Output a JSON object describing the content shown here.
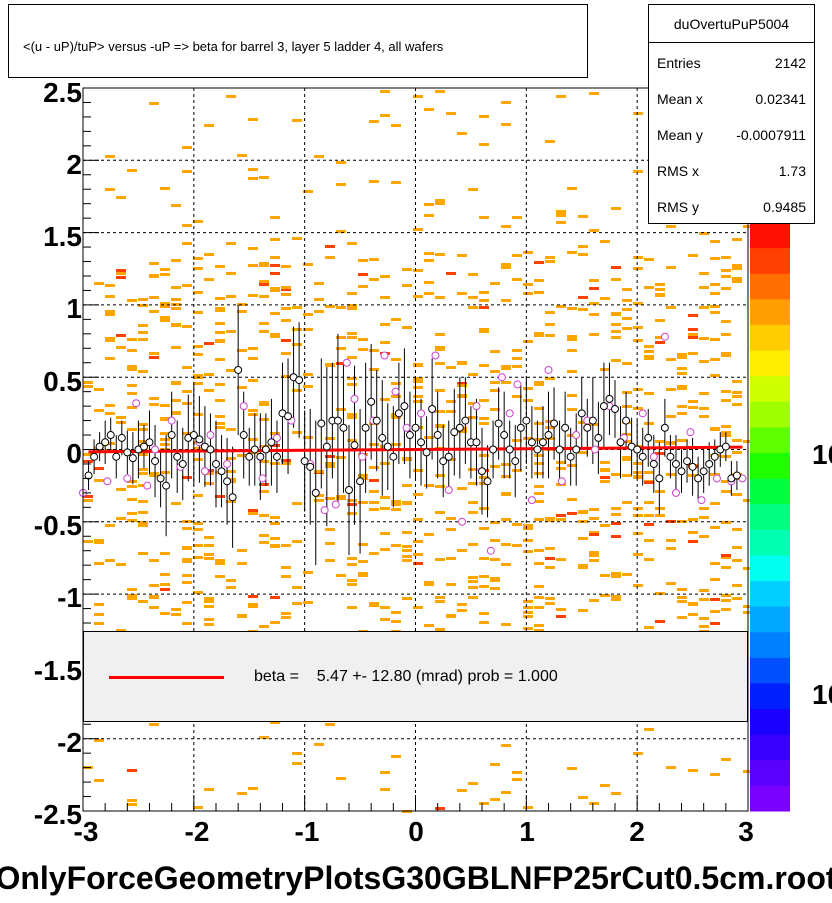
{
  "title": "<(u - uP)/tuP> versus  -uP => beta for barrel 3, layer 5 ladder 4, all wafers",
  "stats": {
    "name": "duOvertuPuP5004",
    "rows": [
      {
        "key": "Entries",
        "value": "2142"
      },
      {
        "key": "Mean x",
        "value": "0.02341"
      },
      {
        "key": "Mean y",
        "value": "-0.0007911"
      },
      {
        "key": "RMS x",
        "value": "1.73"
      },
      {
        "key": "RMS y",
        "value": "0.9485"
      }
    ]
  },
  "legend": {
    "line_color": "#ff0000",
    "text": "beta =    5.47 +- 12.80 (mrad) prob = 1.000"
  },
  "filename_label": "OnlyForceGeometryPlotsG30GBLNFP25rCut0.5cm.root",
  "colorbar_labels": [
    "10",
    "10"
  ],
  "chart_data": {
    "type": "scatter",
    "title": "<(u - uP)/tuP> versus  -uP => beta for barrel 3, layer 5 ladder 4, all wafers",
    "xlim": [
      -3,
      3
    ],
    "ylim": [
      -2.5,
      2.5
    ],
    "x_ticks": [
      "-3",
      "-2",
      "-1",
      "0",
      "1",
      "2",
      "3"
    ],
    "y_ticks": [
      "2.5",
      "2",
      "1.5",
      "1",
      "0.5",
      "0",
      "-0.5",
      "-1",
      "-1.5",
      "-2",
      "-2.5"
    ],
    "grid": true,
    "fit_line": {
      "x": [
        -2.95,
        2.95
      ],
      "y": [
        -0.016,
        0.016
      ],
      "color": "#ff0000"
    },
    "colors": {
      "hist": "#ffa500",
      "hist_hot": "#ff4000",
      "profile_marker": "#000000",
      "secondary_marker": "#cc44cc",
      "fit": "#ff0000"
    },
    "profile_x": [
      -2.95,
      -2.9,
      -2.85,
      -2.8,
      -2.75,
      -2.7,
      -2.65,
      -2.6,
      -2.55,
      -2.5,
      -2.45,
      -2.4,
      -2.35,
      -2.3,
      -2.25,
      -2.2,
      -2.15,
      -2.1,
      -2.05,
      -2.0,
      -1.95,
      -1.9,
      -1.85,
      -1.8,
      -1.75,
      -1.7,
      -1.65,
      -1.6,
      -1.55,
      -1.5,
      -1.45,
      -1.4,
      -1.35,
      -1.3,
      -1.25,
      -1.2,
      -1.15,
      -1.1,
      -1.05,
      -1.0,
      -0.95,
      -0.9,
      -0.85,
      -0.8,
      -0.75,
      -0.7,
      -0.65,
      -0.6,
      -0.55,
      -0.5,
      -0.45,
      -0.4,
      -0.35,
      -0.3,
      -0.25,
      -0.2,
      -0.15,
      -0.1,
      -0.05,
      0.0,
      0.05,
      0.1,
      0.15,
      0.2,
      0.25,
      0.3,
      0.35,
      0.4,
      0.45,
      0.5,
      0.55,
      0.6,
      0.65,
      0.7,
      0.75,
      0.8,
      0.85,
      0.9,
      0.95,
      1.0,
      1.05,
      1.1,
      1.15,
      1.2,
      1.25,
      1.3,
      1.35,
      1.4,
      1.45,
      1.5,
      1.55,
      1.6,
      1.65,
      1.7,
      1.75,
      1.8,
      1.85,
      1.9,
      1.95,
      2.0,
      2.05,
      2.1,
      2.15,
      2.2,
      2.25,
      2.3,
      2.35,
      2.4,
      2.45,
      2.5,
      2.55,
      2.6,
      2.65,
      2.7,
      2.75,
      2.8,
      2.85,
      2.9
    ],
    "profile_y": [
      -0.18,
      -0.05,
      0.02,
      0.05,
      0.1,
      -0.05,
      0.08,
      -0.02,
      -0.06,
      0.0,
      0.02,
      0.05,
      -0.08,
      -0.2,
      -0.25,
      0.1,
      -0.05,
      -0.1,
      0.08,
      0.1,
      0.07,
      0.02,
      0.0,
      -0.1,
      -0.15,
      -0.22,
      -0.33,
      0.55,
      0.1,
      -0.05,
      0.0,
      -0.05,
      0.0,
      0.05,
      -0.05,
      0.25,
      0.23,
      0.5,
      0.48,
      -0.08,
      -0.12,
      -0.3,
      0.18,
      0.02,
      0.2,
      0.2,
      0.15,
      -0.28,
      0.03,
      -0.22,
      0.15,
      0.33,
      0.2,
      0.08,
      0.02,
      -0.05,
      0.25,
      0.3,
      0.1,
      0.15,
      0.05,
      -0.02,
      0.28,
      0.1,
      -0.08,
      -0.05,
      0.12,
      0.15,
      0.2,
      0.05,
      0.05,
      -0.15,
      -0.22,
      0.0,
      0.18,
      0.1,
      0.0,
      -0.08,
      0.15,
      0.2,
      0.05,
      0.0,
      0.05,
      0.1,
      0.18,
      0.0,
      0.15,
      -0.05,
      0.0,
      0.25,
      0.15,
      0.2,
      0.08,
      0.3,
      0.35,
      0.28,
      0.05,
      0.2,
      0.02,
      0.0,
      -0.05,
      0.08,
      -0.1,
      -0.2,
      0.15,
      -0.05,
      -0.1,
      -0.15,
      -0.08,
      -0.12,
      -0.2,
      -0.15,
      -0.1,
      -0.05,
      0.0,
      0.02,
      -0.2,
      -0.18
    ],
    "profile_err": [
      0.1,
      0.12,
      0.1,
      0.15,
      0.12,
      0.15,
      0.12,
      0.15,
      0.18,
      0.2,
      0.15,
      0.22,
      0.25,
      0.2,
      0.35,
      0.3,
      0.25,
      0.25,
      0.3,
      0.35,
      0.3,
      0.28,
      0.25,
      0.3,
      0.25,
      0.3,
      0.35,
      0.45,
      0.3,
      0.2,
      0.25,
      0.3,
      0.25,
      0.3,
      0.25,
      0.35,
      0.4,
      0.35,
      0.4,
      0.35,
      0.4,
      0.5,
      0.45,
      0.55,
      0.4,
      0.6,
      0.45,
      0.45,
      0.55,
      0.5,
      0.45,
      0.4,
      0.35,
      0.4,
      0.3,
      0.35,
      0.35,
      0.4,
      0.3,
      0.35,
      0.3,
      0.25,
      0.35,
      0.3,
      0.25,
      0.25,
      0.3,
      0.35,
      0.3,
      0.25,
      0.3,
      0.3,
      0.25,
      0.2,
      0.25,
      0.3,
      0.2,
      0.25,
      0.3,
      0.3,
      0.25,
      0.2,
      0.25,
      0.3,
      0.25,
      0.2,
      0.25,
      0.2,
      0.25,
      0.25,
      0.2,
      0.3,
      0.25,
      0.3,
      0.25,
      0.2,
      0.25,
      0.2,
      0.2,
      0.2,
      0.2,
      0.2,
      0.2,
      0.25,
      0.2,
      0.15,
      0.2,
      0.15,
      0.15,
      0.2,
      0.15,
      0.15,
      0.15,
      0.12,
      0.12,
      0.1,
      0.12,
      0.1
    ],
    "secondary_points": [
      [
        -3.0,
        -0.3
      ],
      [
        -2.78,
        -0.22
      ],
      [
        -2.6,
        -0.2
      ],
      [
        -2.52,
        0.32
      ],
      [
        -2.42,
        -0.25
      ],
      [
        -2.35,
        0.0
      ],
      [
        -2.2,
        0.2
      ],
      [
        -2.12,
        -0.12
      ],
      [
        -1.95,
        0.05
      ],
      [
        -1.9,
        -0.15
      ],
      [
        -1.85,
        0.1
      ],
      [
        -1.7,
        -0.1
      ],
      [
        -1.55,
        0.3
      ],
      [
        -1.38,
        -0.2
      ],
      [
        -1.25,
        0.08
      ],
      [
        -1.12,
        0.2
      ],
      [
        -0.95,
        -0.1
      ],
      [
        -0.82,
        -0.42
      ],
      [
        -0.72,
        -0.38
      ],
      [
        -0.62,
        0.6
      ],
      [
        -0.55,
        0.35
      ],
      [
        -0.48,
        -0.05
      ],
      [
        -0.38,
        0.2
      ],
      [
        -0.28,
        0.65
      ],
      [
        -0.18,
        0.4
      ],
      [
        -0.08,
        0.15
      ],
      [
        0.05,
        0.25
      ],
      [
        0.18,
        0.65
      ],
      [
        0.3,
        -0.28
      ],
      [
        0.42,
        -0.5
      ],
      [
        0.55,
        0.3
      ],
      [
        0.68,
        -0.7
      ],
      [
        0.78,
        0.5
      ],
      [
        0.85,
        0.25
      ],
      [
        0.92,
        0.45
      ],
      [
        1.05,
        -0.35
      ],
      [
        1.2,
        0.55
      ],
      [
        1.32,
        -0.22
      ],
      [
        1.45,
        0.1
      ],
      [
        1.55,
        0.2
      ],
      [
        1.62,
        0.0
      ],
      [
        1.75,
        0.3
      ],
      [
        1.88,
        0.08
      ],
      [
        2.05,
        0.25
      ],
      [
        2.15,
        -0.05
      ],
      [
        2.25,
        0.78
      ],
      [
        2.35,
        -0.3
      ],
      [
        2.48,
        0.12
      ],
      [
        2.58,
        -0.35
      ],
      [
        2.72,
        -0.2
      ],
      [
        2.85,
        -0.22
      ],
      [
        2.95,
        -0.2
      ]
    ]
  }
}
